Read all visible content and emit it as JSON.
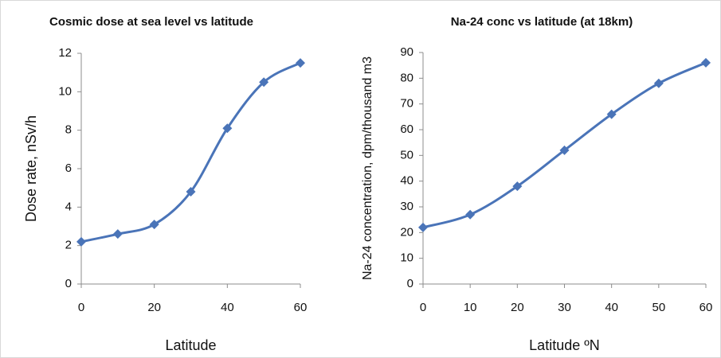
{
  "chart_data": [
    {
      "type": "line",
      "title": "Cosmic dose at sea level vs latitude",
      "x_label": "Latitude",
      "y_label": "Dose rate, nSv/h",
      "x": [
        0,
        10,
        20,
        30,
        40,
        50,
        60
      ],
      "series": [
        {
          "color": "#4a74b8",
          "values": [
            2.2,
            2.6,
            3.1,
            4.8,
            8.1,
            10.5,
            11.5
          ]
        }
      ],
      "xlim": [
        0,
        60
      ],
      "xticks": [
        0,
        20,
        40,
        60
      ],
      "ylim": [
        0,
        12
      ],
      "yticks": [
        0,
        2,
        4,
        6,
        8,
        10,
        12
      ],
      "grid": false
    },
    {
      "type": "line",
      "title": "Na-24 conc vs latitude (at 18km)",
      "x_label": "Latitude ºN",
      "y_label": "Na-24 concentration, dpm/thousand m3",
      "x": [
        0,
        10,
        20,
        30,
        40,
        50,
        60
      ],
      "series": [
        {
          "color": "#4a74b8",
          "values": [
            22,
            27,
            38,
            52,
            66,
            78,
            86
          ]
        }
      ],
      "xlim": [
        0,
        60
      ],
      "xticks": [
        0,
        10,
        20,
        30,
        40,
        50,
        60
      ],
      "ylim": [
        0,
        90
      ],
      "yticks": [
        0,
        10,
        20,
        30,
        40,
        50,
        60,
        70,
        80,
        90
      ],
      "grid": false
    }
  ]
}
